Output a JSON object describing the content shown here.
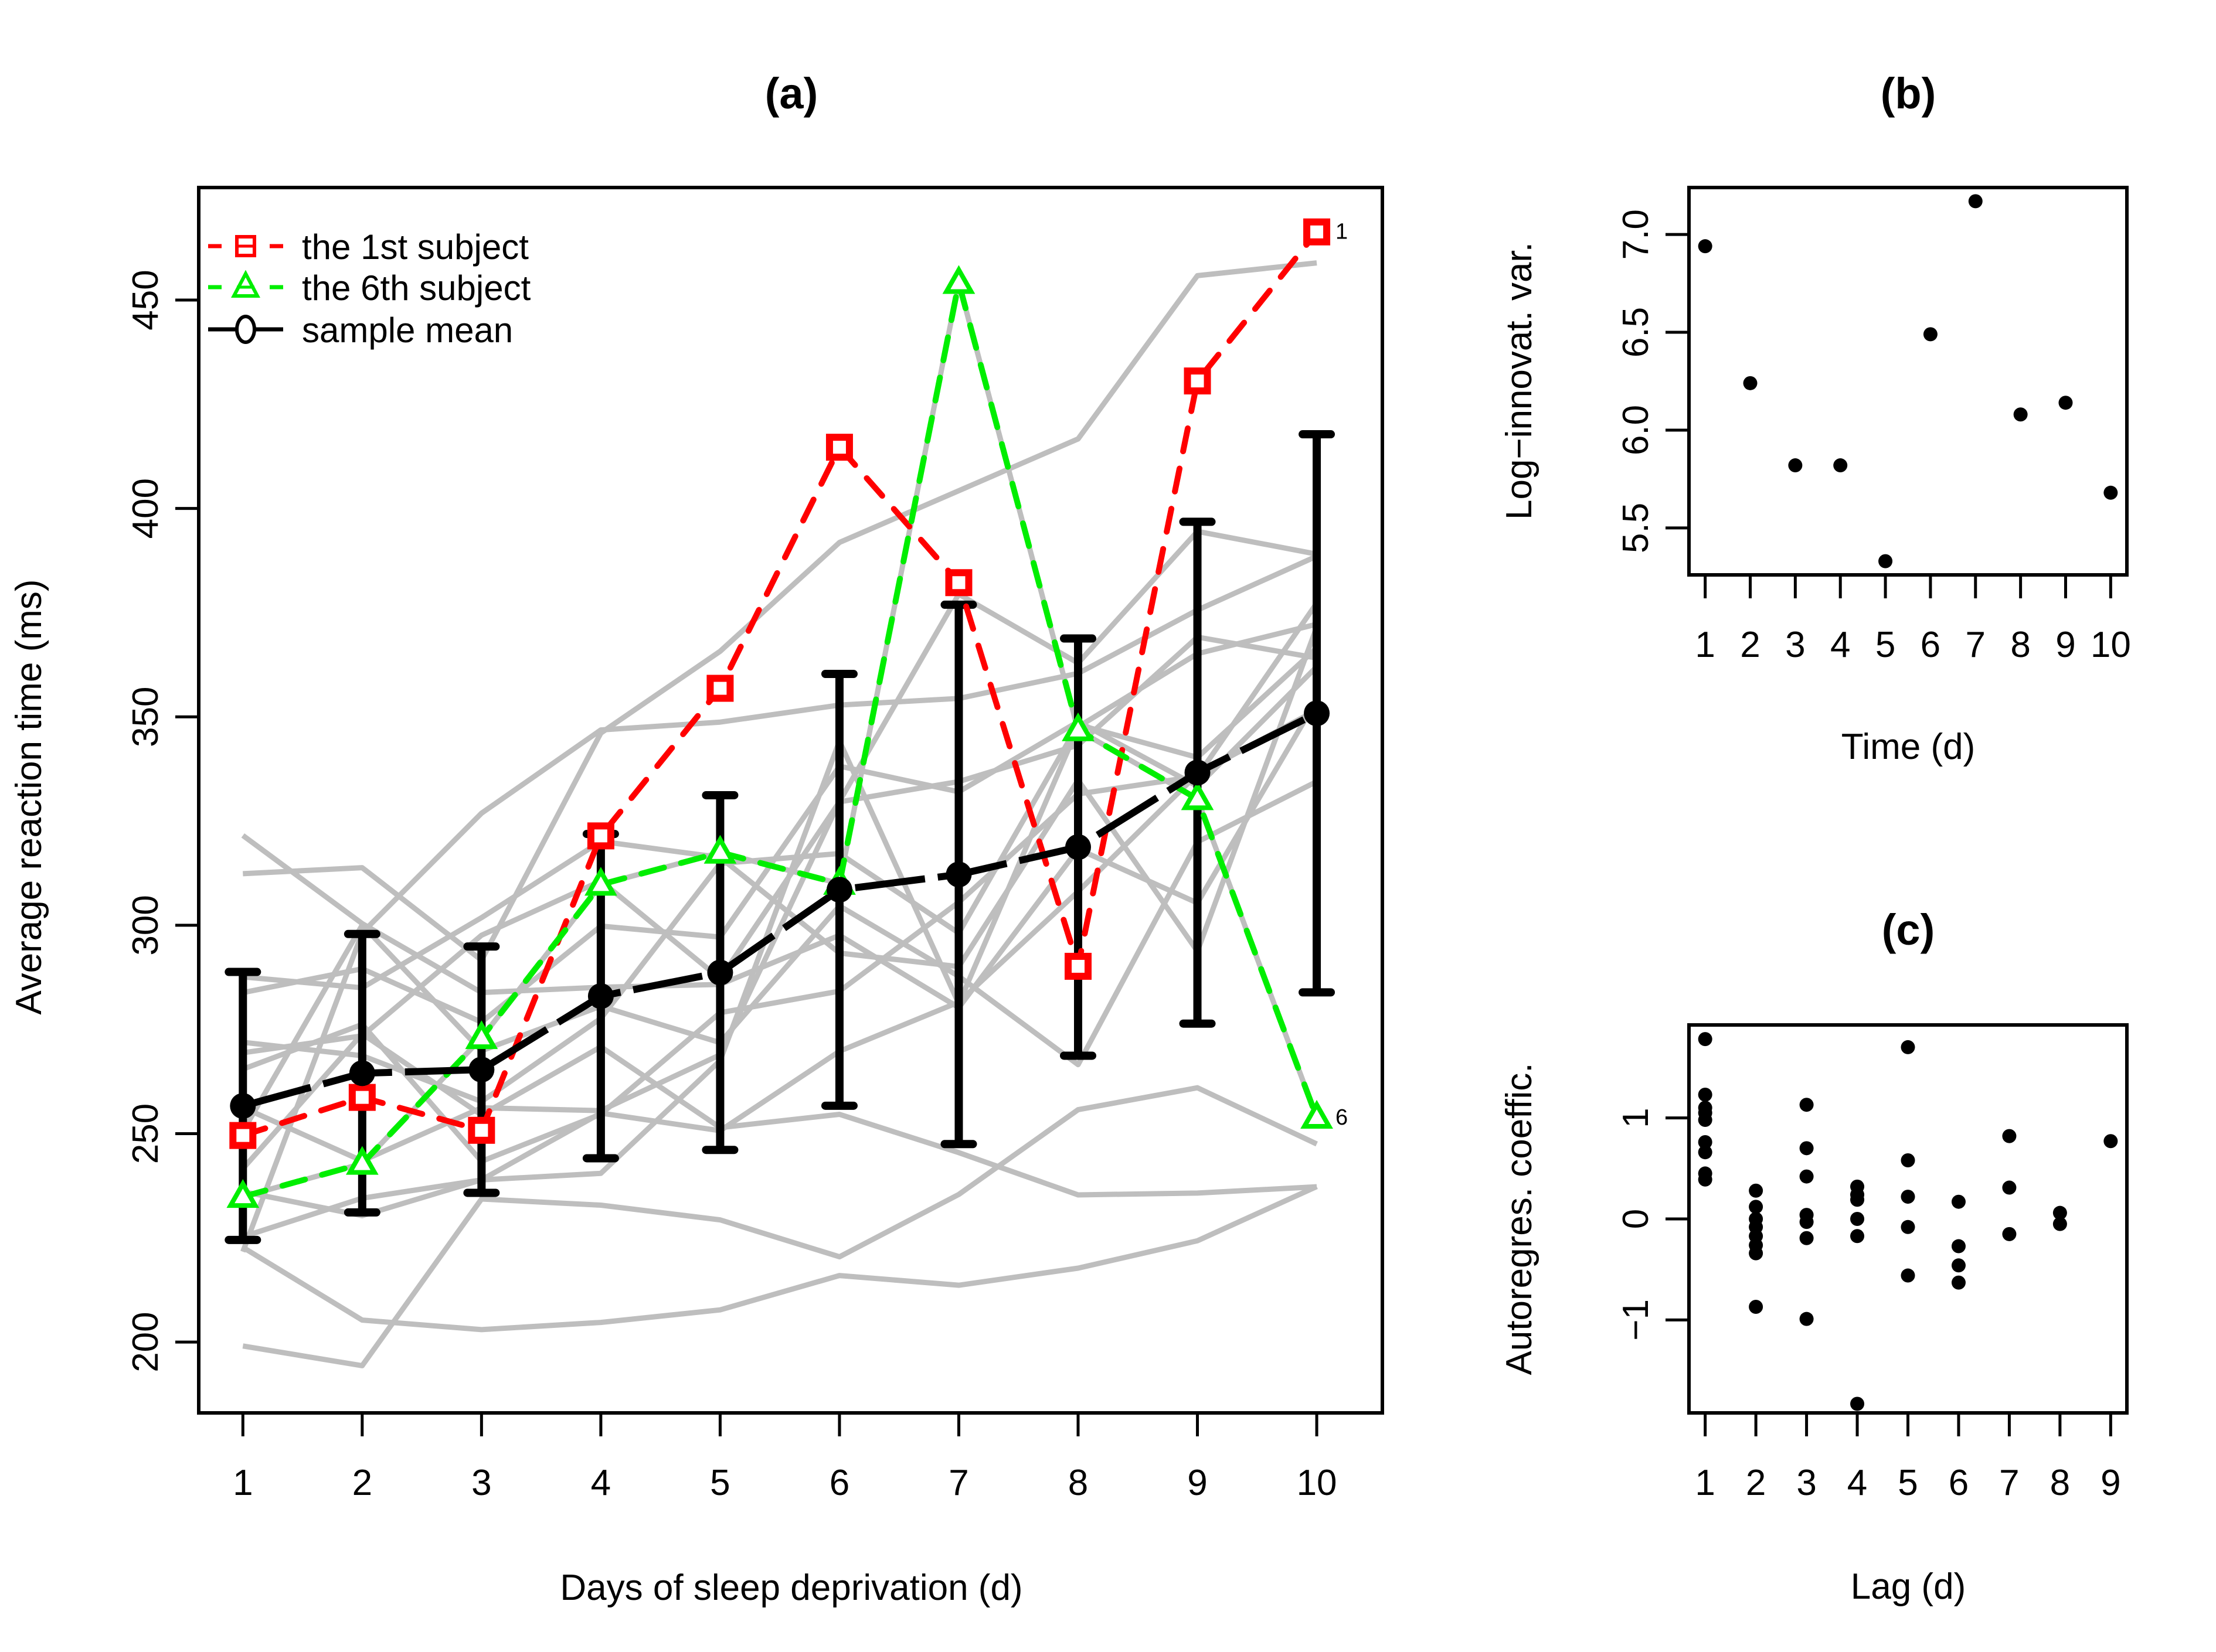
{
  "chart_data": [
    {
      "panel": "a",
      "type": "line",
      "title": "(a)",
      "xlabel": "Days of sleep deprivation (d)",
      "ylabel": "Average reaction time (ms)",
      "x": [
        1,
        2,
        3,
        4,
        5,
        6,
        7,
        8,
        9,
        10
      ],
      "xticks": [
        "1",
        "2",
        "3",
        "4",
        "5",
        "6",
        "7",
        "8",
        "9",
        "10"
      ],
      "yticks": [
        200,
        250,
        300,
        350,
        400,
        450
      ],
      "ylim": [
        183,
        477
      ],
      "xlim": [
        0.63,
        10.55
      ],
      "grid": false,
      "legend": {
        "placement": "top-left",
        "entries": [
          {
            "label": "the 1st subject",
            "color": "#ff0000",
            "marker": "square",
            "line": "dashed"
          },
          {
            "label": "the 6th subject",
            "color": "#00ee00",
            "marker": "triangle",
            "line": "dashed"
          },
          {
            "label": "sample mean",
            "color": "#000000",
            "marker": "circle",
            "line": "solid"
          }
        ]
      },
      "background_series_color": "#bebebe",
      "background_series": [
        [
          222.73,
          205.27,
          202.98,
          204.71,
          207.72,
          215.96,
          213.63,
          217.73,
          224.3,
          237.31
        ],
        [
          199.05,
          194.33,
          234.32,
          232.84,
          229.31,
          220.46,
          235.42,
          255.75,
          261.01,
          247.52
        ],
        [
          321.54,
          300.4,
          283.86,
          285.13,
          285.8,
          297.59,
          280.24,
          318.26,
          305.35,
          354.05
        ],
        [
          287.61,
          285.0,
          301.82,
          320.12,
          316.28,
          293.32,
          290.08,
          334.82,
          293.75,
          371.58
        ],
        [
          234.86,
          242.81,
          272.96,
          309.77,
          317.46,
          309.99,
          454.16,
          346.83,
          330.3,
          253.86
        ],
        [
          283.84,
          289.55,
          276.77,
          299.8,
          297.17,
          338.17,
          332.02,
          348.84,
          333.36,
          362.04
        ],
        [
          265.47,
          276.2,
          243.36,
          254.67,
          279.02,
          284.19,
          305.53,
          331.5,
          335.75,
          377.3
        ],
        [
          241.61,
          273.95,
          254.49,
          270.84,
          251.45,
          254.64,
          245.45,
          235.31,
          235.75,
          237.25
        ],
        [
          312.37,
          313.81,
          291.61,
          346.12,
          365.73,
          391.84,
          404.26,
          416.69,
          455.86,
          458.92
        ],
        [
          236.1,
          230.32,
          238.92,
          254.92,
          250.71,
          269.77,
          281.56,
          308.1,
          336.28,
          351.65
        ],
        [
          256.29,
          243.46,
          256.2,
          255.53,
          268.92,
          329.72,
          379.44,
          362.91,
          394.49,
          389.05
        ],
        [
          250.53,
          300.06,
          269.89,
          280.58,
          271.83,
          304.63,
          287.75,
          266.56,
          320.0,
          334.48
        ],
        [
          221.68,
          298.19,
          326.88,
          346.86,
          348.74,
          352.83,
          354.42,
          360.43,
          375.63,
          388.54
        ],
        [
          271.92,
          268.7,
          257.7,
          277.66,
          314.82,
          317.21,
          298.14,
          348.12,
          340.28,
          366.51
        ],
        [
          225.26,
          234.52,
          238.9,
          240.47,
          267.54,
          344.19,
          281.15,
          347.59,
          365.16,
          372.23
        ],
        [
          269.41,
          273.47,
          297.6,
          310.63,
          287.17,
          329.61,
          334.48,
          343.22,
          369.14,
          364.12
        ]
      ],
      "series": [
        {
          "name": "the 1st subject",
          "values": [
            249.56,
            258.7,
            250.8,
            321.44,
            356.85,
            414.69,
            382.2,
            290.15,
            430.59,
            466.35
          ],
          "end_label": "1"
        },
        {
          "name": "the 6th subject",
          "values": [
            234.86,
            242.81,
            272.96,
            309.77,
            317.46,
            309.99,
            454.16,
            346.83,
            330.3,
            253.86
          ],
          "end_label": "6"
        },
        {
          "name": "sample mean",
          "values": [
            256.65,
            264.5,
            265.36,
            282.99,
            288.65,
            308.52,
            312.18,
            318.75,
            336.63,
            350.85
          ],
          "error_low": [
            224.5,
            231.1,
            235.8,
            244.1,
            246.1,
            256.7,
            247.5,
            268.7,
            276.4,
            283.9
          ],
          "error_high": [
            288.8,
            297.9,
            294.9,
            321.9,
            331.2,
            360.3,
            376.9,
            368.8,
            396.8,
            417.8
          ]
        }
      ]
    },
    {
      "panel": "b",
      "type": "scatter",
      "title": "(b)",
      "xlabel": "Time (d)",
      "ylabel": "Log−innovat. var.",
      "x": [
        1,
        2,
        3,
        4,
        5,
        6,
        7,
        8,
        9,
        10
      ],
      "values": [
        6.94,
        6.24,
        5.82,
        5.82,
        5.33,
        6.49,
        7.17,
        6.08,
        6.14,
        5.68
      ],
      "xticks": [
        "1",
        "2",
        "3",
        "4",
        "5",
        "6",
        "7",
        "8",
        "9",
        "10"
      ],
      "yticks": [
        "5.5",
        "6.0",
        "6.5",
        "7.0"
      ],
      "ylim": [
        5.26,
        7.24
      ],
      "xlim": [
        0.64,
        10.36
      ],
      "grid": false
    },
    {
      "panel": "c",
      "type": "scatter",
      "title": "(c)",
      "xlabel": "Lag (d)",
      "ylabel": "Autoregres. coeffic.",
      "points": [
        {
          "lag": 1,
          "values": [
            1.78,
            1.23,
            1.1,
            1.05,
            0.98,
            0.76,
            0.66,
            0.45,
            0.39
          ]
        },
        {
          "lag": 2,
          "values": [
            0.28,
            0.12,
            0.0,
            -0.08,
            -0.17,
            -0.26,
            -0.34,
            -0.87
          ]
        },
        {
          "lag": 3,
          "values": [
            1.13,
            0.7,
            0.42,
            0.04,
            -0.03,
            -0.19,
            -0.99
          ]
        },
        {
          "lag": 4,
          "values": [
            0.32,
            0.24,
            0.19,
            0.0,
            -0.17,
            -1.83
          ]
        },
        {
          "lag": 5,
          "values": [
            1.7,
            0.58,
            0.22,
            -0.08,
            -0.56
          ]
        },
        {
          "lag": 6,
          "values": [
            0.17,
            -0.27,
            -0.46,
            -0.63
          ]
        },
        {
          "lag": 7,
          "values": [
            0.82,
            0.31,
            -0.15
          ]
        },
        {
          "lag": 8,
          "values": [
            0.06,
            -0.05
          ]
        },
        {
          "lag": 9,
          "values": [
            0.77
          ]
        }
      ],
      "xticks": [
        "1",
        "2",
        "3",
        "4",
        "5",
        "6",
        "7",
        "8",
        "9"
      ],
      "yticks": [
        "−1",
        "0",
        "1"
      ],
      "ylim": [
        -1.92,
        1.92
      ],
      "xlim": [
        0.68,
        9.32
      ],
      "grid": false
    }
  ]
}
